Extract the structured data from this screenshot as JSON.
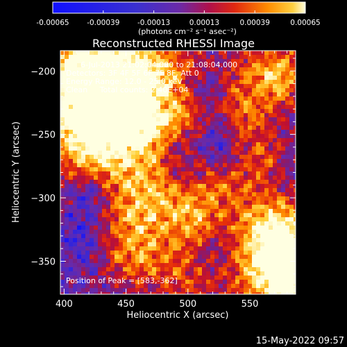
{
  "chart_data": {
    "type": "heatmap",
    "title": "Reconstructed RHESSI Image",
    "xlabel": "Heliocentric X (arcsec)",
    "ylabel": "Heliocentric Y (arcsec)",
    "xlim": [
      397,
      587
    ],
    "ylim": [
      -376,
      -184
    ],
    "xticks": [
      400,
      450,
      500,
      550
    ],
    "yticks": [
      -200,
      -250,
      -300,
      -350
    ],
    "colorbar": {
      "label": "(photons cm⁻² s⁻¹ asec⁻²)",
      "range": [
        -0.00065,
        0.00065
      ],
      "ticks": [
        "-0.00065",
        "-0.00039",
        "-0.00013",
        "0.00013",
        "0.00039",
        "0.00065"
      ]
    },
    "info": {
      "line1": "6-Jul-2013 21:02:04.000 to 21:08:04.000",
      "line2": "Detectors: 3F 4F 5F 6F 7F 8F, Att 0",
      "line3": "Energy Range: 12.0 - 25.0 keV",
      "line4": "Clean     Total counts: 2.40E+04"
    },
    "peak_label": "Position of Peak = [583,-362]",
    "peak": [
      583,
      -362
    ],
    "colors": {
      "neg_low": "#1a1aff",
      "background": "#6a2aa8",
      "mid": "#c0142a",
      "high": "#ff7a00",
      "max": "#ffffe0"
    }
  },
  "footer": {
    "timestamp": "15-May-2022 09:57"
  }
}
